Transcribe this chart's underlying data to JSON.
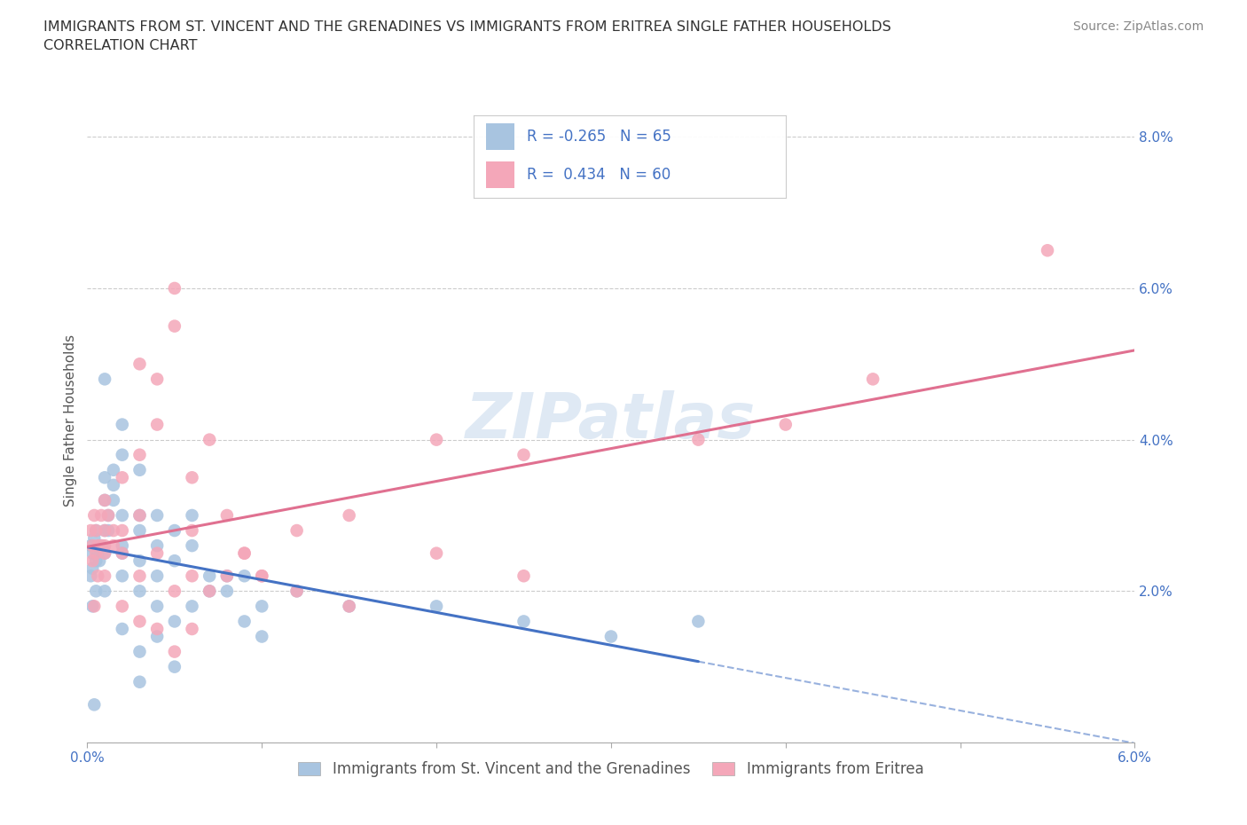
{
  "title_line1": "IMMIGRANTS FROM ST. VINCENT AND THE GRENADINES VS IMMIGRANTS FROM ERITREA SINGLE FATHER HOUSEHOLDS",
  "title_line2": "CORRELATION CHART",
  "source": "Source: ZipAtlas.com",
  "ylabel": "Single Father Households",
  "xlim": [
    0.0,
    0.06
  ],
  "ylim": [
    0.0,
    0.085
  ],
  "xticks": [
    0.0,
    0.01,
    0.02,
    0.03,
    0.04,
    0.05,
    0.06
  ],
  "xtick_labels": [
    "0.0%",
    "",
    "",
    "",
    "",
    "",
    "6.0%"
  ],
  "yticks": [
    0.0,
    0.02,
    0.04,
    0.06,
    0.08
  ],
  "ytick_labels": [
    "",
    "2.0%",
    "4.0%",
    "6.0%",
    "8.0%"
  ],
  "legend_labels": [
    "Immigrants from St. Vincent and the Grenadines",
    "Immigrants from Eritrea"
  ],
  "R_blue": -0.265,
  "N_blue": 65,
  "R_pink": 0.434,
  "N_pink": 60,
  "color_blue": "#a8c4e0",
  "color_pink": "#f4a7b9",
  "trendline_blue": "#4472c4",
  "trendline_pink": "#e07090",
  "watermark": "ZIPatlas",
  "blue_scatter_x": [
    0.0002,
    0.0003,
    0.0004,
    0.0005,
    0.0006,
    0.0007,
    0.0008,
    0.001,
    0.001,
    0.001,
    0.0012,
    0.0015,
    0.0015,
    0.002,
    0.002,
    0.002,
    0.003,
    0.003,
    0.003,
    0.004,
    0.004,
    0.005,
    0.005,
    0.006,
    0.006,
    0.007,
    0.008,
    0.009,
    0.01,
    0.012,
    0.0002,
    0.0003,
    0.0005,
    0.0007,
    0.001,
    0.0012,
    0.0015,
    0.002,
    0.002,
    0.003,
    0.003,
    0.004,
    0.004,
    0.005,
    0.006,
    0.007,
    0.008,
    0.009,
    0.01,
    0.015,
    0.0003,
    0.0005,
    0.001,
    0.002,
    0.003,
    0.004,
    0.005,
    0.02,
    0.025,
    0.03,
    0.0004,
    0.001,
    0.002,
    0.003,
    0.035
  ],
  "blue_scatter_y": [
    0.026,
    0.025,
    0.027,
    0.028,
    0.025,
    0.024,
    0.026,
    0.032,
    0.035,
    0.028,
    0.03,
    0.036,
    0.034,
    0.03,
    0.025,
    0.038,
    0.028,
    0.03,
    0.036,
    0.026,
    0.03,
    0.024,
    0.028,
    0.026,
    0.03,
    0.022,
    0.02,
    0.022,
    0.018,
    0.02,
    0.022,
    0.023,
    0.024,
    0.026,
    0.025,
    0.028,
    0.032,
    0.022,
    0.026,
    0.024,
    0.02,
    0.018,
    0.022,
    0.016,
    0.018,
    0.02,
    0.022,
    0.016,
    0.014,
    0.018,
    0.018,
    0.02,
    0.02,
    0.015,
    0.012,
    0.014,
    0.01,
    0.018,
    0.016,
    0.014,
    0.005,
    0.048,
    0.042,
    0.008,
    0.016
  ],
  "pink_scatter_x": [
    0.0002,
    0.0003,
    0.0004,
    0.0005,
    0.0006,
    0.0008,
    0.001,
    0.001,
    0.001,
    0.0012,
    0.0015,
    0.002,
    0.002,
    0.003,
    0.003,
    0.003,
    0.004,
    0.004,
    0.005,
    0.005,
    0.006,
    0.006,
    0.007,
    0.008,
    0.009,
    0.01,
    0.012,
    0.015,
    0.02,
    0.025,
    0.0003,
    0.0005,
    0.0008,
    0.001,
    0.0015,
    0.002,
    0.003,
    0.004,
    0.005,
    0.006,
    0.007,
    0.008,
    0.009,
    0.01,
    0.012,
    0.015,
    0.02,
    0.025,
    0.035,
    0.04,
    0.0004,
    0.0006,
    0.001,
    0.002,
    0.003,
    0.004,
    0.005,
    0.006,
    0.045,
    0.055
  ],
  "pink_scatter_y": [
    0.028,
    0.026,
    0.03,
    0.025,
    0.026,
    0.03,
    0.032,
    0.028,
    0.026,
    0.03,
    0.026,
    0.028,
    0.035,
    0.03,
    0.038,
    0.05,
    0.042,
    0.048,
    0.055,
    0.06,
    0.028,
    0.035,
    0.04,
    0.03,
    0.025,
    0.022,
    0.028,
    0.03,
    0.04,
    0.038,
    0.024,
    0.028,
    0.026,
    0.025,
    0.028,
    0.025,
    0.022,
    0.025,
    0.02,
    0.022,
    0.02,
    0.022,
    0.025,
    0.022,
    0.02,
    0.018,
    0.025,
    0.022,
    0.04,
    0.042,
    0.018,
    0.022,
    0.022,
    0.018,
    0.016,
    0.015,
    0.012,
    0.015,
    0.048,
    0.065
  ]
}
